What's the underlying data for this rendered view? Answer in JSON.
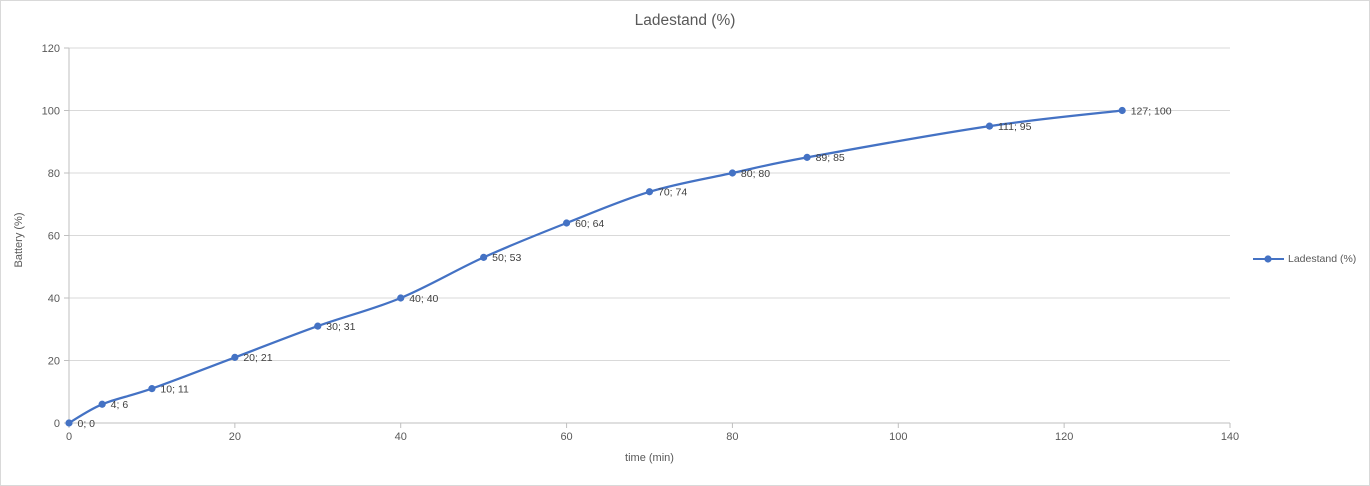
{
  "chart": {
    "title": "Ladestand (%)",
    "x_axis": {
      "label": "time (min)",
      "ticks": [
        0,
        20,
        40,
        60,
        80,
        100,
        120,
        140
      ]
    },
    "y_axis": {
      "label": "Battery (%)",
      "ticks": [
        0,
        20,
        40,
        60,
        80,
        100,
        120
      ]
    },
    "legend": {
      "label": "Ladestand (%)",
      "position": "right"
    },
    "colors": {
      "series": "#4472c4",
      "grid": "#d9d9d9",
      "axis": "#bfbfbf",
      "tick_text": "#595959",
      "data_label_text": "#404040",
      "title_text": "#595959",
      "border": "#d9d9d9",
      "background": "#ffffff"
    }
  },
  "chart_data": {
    "type": "line",
    "title": "Ladestand (%)",
    "xlabel": "time (min)",
    "ylabel": "Battery (%)",
    "xlim": [
      0,
      140
    ],
    "ylim": [
      0,
      120
    ],
    "x_tick_step": 20,
    "y_tick_step": 20,
    "grid": "horizontal-major-only",
    "legend_position": "right",
    "marker": "circle",
    "line_style": "smooth",
    "series": [
      {
        "name": "Ladestand (%)",
        "points": [
          [
            0,
            0
          ],
          [
            4,
            6
          ],
          [
            10,
            11
          ],
          [
            20,
            21
          ],
          [
            30,
            31
          ],
          [
            40,
            40
          ],
          [
            50,
            53
          ],
          [
            60,
            64
          ],
          [
            70,
            74
          ],
          [
            80,
            80
          ],
          [
            89,
            85
          ],
          [
            111,
            95
          ],
          [
            127,
            100
          ]
        ],
        "data_labels": [
          "0; 0",
          "4; 6",
          "10; 11",
          "20; 21",
          "30; 31",
          "40; 40",
          "50; 53",
          "60; 64",
          "70; 74",
          "80; 80",
          "89; 85",
          "111; 95",
          "127; 100"
        ],
        "data_label_position": "right"
      }
    ]
  }
}
